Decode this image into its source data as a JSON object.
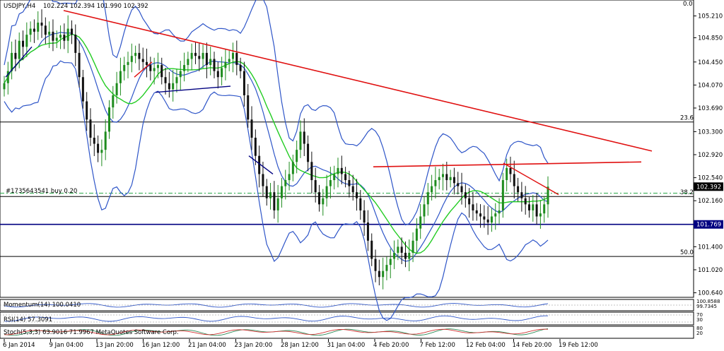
{
  "symbol_header": {
    "symbol": "USDJPY,H4",
    "ohlc": "102.224 102.394 101.990 102.392",
    "top_right_value": "0.0"
  },
  "price_scale": {
    "ticks": [
      "105.210",
      "104.850",
      "104.450",
      "104.070",
      "103.690",
      "103.300",
      "102.920",
      "102.540",
      "102.160",
      "101.780",
      "101.400",
      "101.020",
      "100.640"
    ],
    "current_price": "102.392",
    "hline_price": "101.769"
  },
  "fibonacci": {
    "levels": [
      {
        "label": "23.6",
        "price": 103.46
      },
      {
        "label": "38.2",
        "price": 102.23
      },
      {
        "label": "50.0",
        "price": 101.24
      }
    ]
  },
  "order_line": {
    "text": "#1735643541 buy 0.20",
    "price": 102.285
  },
  "time_axis": {
    "labels": [
      "6 Jan 2014",
      "9 Jan 04:00",
      "13 Jan 20:00",
      "16 Jan 12:00",
      "21 Jan 04:00",
      "23 Jan 20:00",
      "28 Jan 12:00",
      "31 Jan 04:00",
      "4 Feb 20:00",
      "7 Feb 12:00",
      "12 Feb 04:00",
      "14 Feb 20:00",
      "19 Feb 12:00"
    ]
  },
  "indicators": {
    "momentum": {
      "label": "Momentum(14) 100.0410",
      "scale": "100.8588\n99.7345"
    },
    "rsi": {
      "label": "RSI(14) 57.3091",
      "scale": "70\n30"
    },
    "stoch": {
      "label": "Stoch(5,3,3) 63.9016 71.9967 MetaQuotes Software Corp.",
      "scale": "80\n20"
    }
  },
  "colors": {
    "bull_candle": "#1e8c1e",
    "bear_candle": "#111111",
    "bollinger": "#2e55c8",
    "ma": "#22cc22",
    "trendline": "#e01010",
    "hline": "#000080",
    "dash": "#2aa84a"
  },
  "chart_data": {
    "type": "candlestick",
    "symbol": "USDJPY",
    "timeframe": "H4",
    "ylim": [
      100.6,
      105.45
    ],
    "close": [
      104.1,
      104.3,
      104.6,
      104.5,
      104.8,
      104.7,
      104.9,
      105.0,
      104.95,
      105.1,
      105.05,
      104.9,
      104.95,
      104.8,
      104.85,
      104.9,
      104.8,
      105.0,
      104.9,
      104.6,
      104.2,
      103.8,
      103.5,
      103.2,
      103.1,
      102.95,
      103.0,
      103.3,
      103.7,
      103.9,
      104.1,
      104.3,
      104.4,
      104.45,
      104.55,
      104.6,
      104.5,
      104.45,
      104.4,
      104.3,
      104.35,
      104.4,
      104.2,
      104.1,
      104.0,
      104.1,
      104.2,
      104.3,
      104.4,
      104.5,
      104.6,
      104.55,
      104.5,
      104.6,
      104.4,
      104.5,
      104.3,
      104.2,
      104.35,
      104.45,
      104.5,
      104.6,
      104.4,
      104.3,
      103.9,
      103.5,
      103.2,
      102.9,
      102.6,
      102.4,
      102.2,
      102.3,
      102.0,
      102.2,
      102.4,
      102.5,
      102.6,
      102.8,
      103.0,
      103.3,
      103.1,
      102.8,
      102.5,
      102.3,
      102.1,
      102.2,
      102.4,
      102.5,
      102.6,
      102.7,
      102.6,
      102.5,
      102.4,
      102.3,
      102.2,
      102.0,
      101.8,
      101.5,
      101.2,
      101.0,
      100.9,
      101.0,
      101.1,
      101.2,
      101.3,
      101.4,
      101.3,
      101.2,
      101.3,
      101.5,
      101.7,
      101.9,
      102.1,
      102.3,
      102.4,
      102.5,
      102.55,
      102.6,
      102.5,
      102.55,
      102.45,
      102.4,
      102.3,
      102.2,
      102.1,
      102.0,
      101.95,
      101.9,
      101.85,
      101.8,
      101.9,
      101.95,
      102.0,
      102.5,
      102.7,
      102.6,
      102.4,
      102.3,
      102.2,
      102.1,
      102.0,
      102.1,
      101.9,
      101.95,
      102.1,
      102.392
    ]
  }
}
